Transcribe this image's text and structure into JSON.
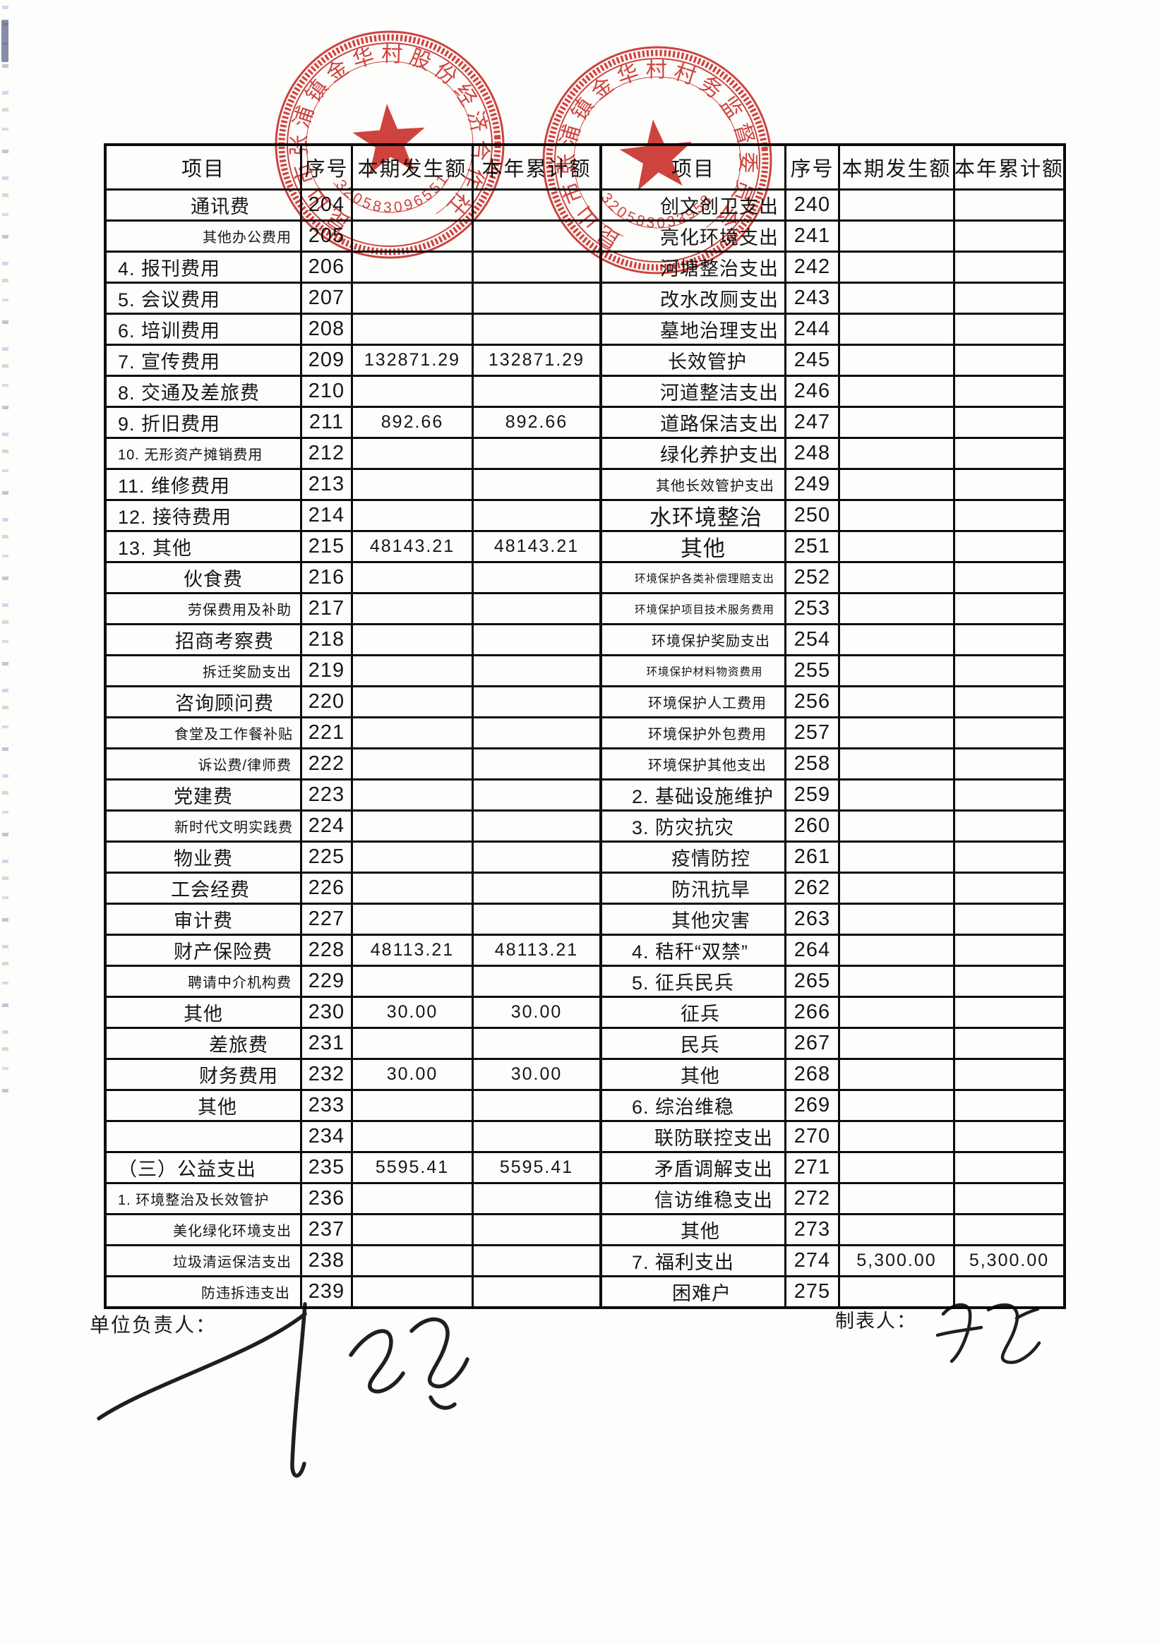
{
  "columns": {
    "item": "项目",
    "seq": "序号",
    "current": "本期发生额",
    "ytd": "本年累计额"
  },
  "footer": {
    "left_label": "单位负责人：",
    "right_label": "制表人："
  },
  "stamps": {
    "left": {
      "arc_text": "昆山市张浦镇金华村股份经济合作社",
      "code": "3205830965516"
    },
    "right": {
      "arc_text": "昆山市张浦镇金华村村务监督委员会",
      "code": "320583033958"
    }
  },
  "left_rows": [
    {
      "label": "通讯费",
      "seq": "204",
      "cur": "",
      "ytd": "",
      "al": "c",
      "sz": "n",
      "ind": 24
    },
    {
      "label": "其他办公费用",
      "seq": "205",
      "cur": "",
      "ytd": "",
      "al": "r",
      "sz": "s",
      "ind": 12
    },
    {
      "label": "4. 报刊费用",
      "seq": "206",
      "cur": "",
      "ytd": "",
      "al": "l",
      "sz": "n",
      "ind": 0
    },
    {
      "label": "5. 会议费用",
      "seq": "207",
      "cur": "",
      "ytd": "",
      "al": "l",
      "sz": "n",
      "ind": 0
    },
    {
      "label": "6. 培训费用",
      "seq": "208",
      "cur": "",
      "ytd": "",
      "al": "l",
      "sz": "n",
      "ind": 0
    },
    {
      "label": "7. 宣传费用",
      "seq": "209",
      "cur": "132871.29",
      "ytd": "132871.29",
      "al": "l",
      "sz": "n",
      "ind": 0
    },
    {
      "label": "8. 交通及差旅费",
      "seq": "210",
      "cur": "",
      "ytd": "",
      "al": "l",
      "sz": "n",
      "ind": 0
    },
    {
      "label": "9. 折旧费用",
      "seq": "211",
      "cur": "892.66",
      "ytd": "892.66",
      "al": "l",
      "sz": "n",
      "ind": 0
    },
    {
      "label": "10. 无形资产摊销费用",
      "seq": "212",
      "cur": "",
      "ytd": "",
      "al": "l",
      "sz": "s",
      "ind": 0
    },
    {
      "label": "11. 维修费用",
      "seq": "213",
      "cur": "",
      "ytd": "",
      "al": "l",
      "sz": "n",
      "ind": 0
    },
    {
      "label": "12. 接待费用",
      "seq": "214",
      "cur": "",
      "ytd": "",
      "al": "l",
      "sz": "n",
      "ind": 0
    },
    {
      "label": "13. 其他",
      "seq": "215",
      "cur": "48143.21",
      "ytd": "48143.21",
      "al": "l",
      "sz": "n",
      "ind": 0
    },
    {
      "label": "伙食费",
      "seq": "216",
      "cur": "",
      "ytd": "",
      "al": "c",
      "sz": "n",
      "ind": 14
    },
    {
      "label": "劳保费用及补助",
      "seq": "217",
      "cur": "",
      "ytd": "",
      "al": "r",
      "sz": "s",
      "ind": 12
    },
    {
      "label": "招商考察费",
      "seq": "218",
      "cur": "",
      "ytd": "",
      "al": "c",
      "sz": "n",
      "ind": 30
    },
    {
      "label": "拆迁奖励支出",
      "seq": "219",
      "cur": "",
      "ytd": "",
      "al": "r",
      "sz": "s",
      "ind": 12
    },
    {
      "label": "咨询顾问费",
      "seq": "220",
      "cur": "",
      "ytd": "",
      "al": "c",
      "sz": "n",
      "ind": 30
    },
    {
      "label": "食堂及工作餐补贴",
      "seq": "221",
      "cur": "",
      "ytd": "",
      "al": "r",
      "sz": "s",
      "ind": 10
    },
    {
      "label": "诉讼费/律师费",
      "seq": "222",
      "cur": "",
      "ytd": "",
      "al": "r",
      "sz": "s",
      "ind": 12
    },
    {
      "label": "党建费",
      "seq": "223",
      "cur": "",
      "ytd": "",
      "al": "c",
      "sz": "n",
      "ind": 0
    },
    {
      "label": "新时代文明实践费",
      "seq": "224",
      "cur": "",
      "ytd": "",
      "al": "r",
      "sz": "s",
      "ind": 10
    },
    {
      "label": "物业费",
      "seq": "225",
      "cur": "",
      "ytd": "",
      "al": "c",
      "sz": "n",
      "ind": 0
    },
    {
      "label": "工会经费",
      "seq": "226",
      "cur": "",
      "ytd": "",
      "al": "c",
      "sz": "n",
      "ind": 10
    },
    {
      "label": "审计费",
      "seq": "227",
      "cur": "",
      "ytd": "",
      "al": "c",
      "sz": "n",
      "ind": 0
    },
    {
      "label": "财产保险费",
      "seq": "228",
      "cur": "48113.21",
      "ytd": "48113.21",
      "al": "c",
      "sz": "n",
      "ind": 28
    },
    {
      "label": "聘请中介机构费",
      "seq": "229",
      "cur": "",
      "ytd": "",
      "al": "r",
      "sz": "s",
      "ind": 12
    },
    {
      "label": "其他",
      "seq": "230",
      "cur": "30.00",
      "ytd": "30.00",
      "al": "c",
      "sz": "n",
      "ind": 0
    },
    {
      "label": "差旅费",
      "seq": "231",
      "cur": "",
      "ytd": "",
      "al": "c",
      "sz": "n",
      "ind": 50
    },
    {
      "label": "财务费用",
      "seq": "232",
      "cur": "30.00",
      "ytd": "30.00",
      "al": "c",
      "sz": "n",
      "ind": 50
    },
    {
      "label": "其他",
      "seq": "233",
      "cur": "",
      "ytd": "",
      "al": "c",
      "sz": "n",
      "ind": 20
    },
    {
      "label": "",
      "seq": "234",
      "cur": "",
      "ytd": "",
      "al": "c",
      "sz": "n",
      "ind": 0
    },
    {
      "label": "（三）公益支出",
      "seq": "235",
      "cur": "5595.41",
      "ytd": "5595.41",
      "al": "l",
      "sz": "n",
      "ind": 0
    },
    {
      "label": "1. 环境整治及长效管护",
      "seq": "236",
      "cur": "",
      "ytd": "",
      "al": "l",
      "sz": "s",
      "ind": 0
    },
    {
      "label": "美化绿化环境支出",
      "seq": "237",
      "cur": "",
      "ytd": "",
      "al": "r",
      "sz": "s",
      "ind": 12
    },
    {
      "label": "垃圾清运保洁支出",
      "seq": "238",
      "cur": "",
      "ytd": "",
      "al": "r",
      "sz": "s",
      "ind": 12
    },
    {
      "label": "防违拆违支出",
      "seq": "239",
      "cur": "",
      "ytd": "",
      "al": "r",
      "sz": "s",
      "ind": 14
    }
  ],
  "right_rows": [
    {
      "label": "创文创卫支出",
      "seq": "240",
      "cur": "",
      "ytd": "",
      "al": "r",
      "sz": "n",
      "ind": 8
    },
    {
      "label": "亮化环境支出",
      "seq": "241",
      "cur": "",
      "ytd": "",
      "al": "r",
      "sz": "n",
      "ind": 8
    },
    {
      "label": "河塘整治支出",
      "seq": "242",
      "cur": "",
      "ytd": "",
      "al": "r",
      "sz": "n",
      "ind": 8
    },
    {
      "label": "改水改厕支出",
      "seq": "243",
      "cur": "",
      "ytd": "",
      "al": "r",
      "sz": "n",
      "ind": 8
    },
    {
      "label": "墓地治理支出",
      "seq": "244",
      "cur": "",
      "ytd": "",
      "al": "r",
      "sz": "n",
      "ind": 8
    },
    {
      "label": "长效管护",
      "seq": "245",
      "cur": "",
      "ytd": "",
      "al": "c",
      "sz": "n",
      "ind": 20
    },
    {
      "label": "河道整洁支出",
      "seq": "246",
      "cur": "",
      "ytd": "",
      "al": "r",
      "sz": "n",
      "ind": 8
    },
    {
      "label": "道路保洁支出",
      "seq": "247",
      "cur": "",
      "ytd": "",
      "al": "r",
      "sz": "n",
      "ind": 8
    },
    {
      "label": "绿化养护支出",
      "seq": "248",
      "cur": "",
      "ytd": "",
      "al": "r",
      "sz": "n",
      "ind": 8
    },
    {
      "label": "其他长效管护支出",
      "seq": "249",
      "cur": "",
      "ytd": "",
      "al": "r",
      "sz": "s",
      "ind": 14
    },
    {
      "label": "水环境整治",
      "seq": "250",
      "cur": "",
      "ytd": "",
      "al": "c",
      "sz": "b",
      "ind": 18
    },
    {
      "label": "其他",
      "seq": "251",
      "cur": "",
      "ytd": "",
      "al": "c",
      "sz": "b",
      "ind": 14
    },
    {
      "label": "环境保护各类补偿理赔支出",
      "seq": "252",
      "cur": "",
      "ytd": "",
      "al": "c",
      "sz": "xs",
      "ind": 16
    },
    {
      "label": "环境保护项目技术服务费用",
      "seq": "253",
      "cur": "",
      "ytd": "",
      "al": "c",
      "sz": "xs",
      "ind": 16
    },
    {
      "label": "环境保护奖励支出",
      "seq": "254",
      "cur": "",
      "ytd": "",
      "al": "c",
      "sz": "s",
      "ind": 25
    },
    {
      "label": "环境保护材料物资费用",
      "seq": "255",
      "cur": "",
      "ytd": "",
      "al": "c",
      "sz": "xs",
      "ind": 16
    },
    {
      "label": "环境保护人工费用",
      "seq": "256",
      "cur": "",
      "ytd": "",
      "al": "c",
      "sz": "s",
      "ind": 20
    },
    {
      "label": "环境保护外包费用",
      "seq": "257",
      "cur": "",
      "ytd": "",
      "al": "c",
      "sz": "s",
      "ind": 20
    },
    {
      "label": "环境保护其他支出",
      "seq": "258",
      "cur": "",
      "ytd": "",
      "al": "c",
      "sz": "s",
      "ind": 20
    },
    {
      "label": "2. 基础设施维护",
      "seq": "259",
      "cur": "",
      "ytd": "",
      "al": "l",
      "sz": "n",
      "ind": 0
    },
    {
      "label": "3. 防灾抗灾",
      "seq": "260",
      "cur": "",
      "ytd": "",
      "al": "l",
      "sz": "n",
      "ind": 0
    },
    {
      "label": "疫情防控",
      "seq": "261",
      "cur": "",
      "ytd": "",
      "al": "c",
      "sz": "n",
      "ind": 25
    },
    {
      "label": "防汛抗旱",
      "seq": "262",
      "cur": "",
      "ytd": "",
      "al": "c",
      "sz": "n",
      "ind": 25
    },
    {
      "label": "其他灾害",
      "seq": "263",
      "cur": "",
      "ytd": "",
      "al": "c",
      "sz": "n",
      "ind": 25
    },
    {
      "label": "4. 秸秆“双禁”",
      "seq": "264",
      "cur": "",
      "ytd": "",
      "al": "l",
      "sz": "n",
      "ind": 0
    },
    {
      "label": "5. 征兵民兵",
      "seq": "265",
      "cur": "",
      "ytd": "",
      "al": "l",
      "sz": "n",
      "ind": 0
    },
    {
      "label": "征兵",
      "seq": "266",
      "cur": "",
      "ytd": "",
      "al": "c",
      "sz": "n",
      "ind": 10
    },
    {
      "label": "民兵",
      "seq": "267",
      "cur": "",
      "ytd": "",
      "al": "c",
      "sz": "n",
      "ind": 10
    },
    {
      "label": "其他",
      "seq": "268",
      "cur": "",
      "ytd": "",
      "al": "c",
      "sz": "n",
      "ind": 10
    },
    {
      "label": "6. 综治维稳",
      "seq": "269",
      "cur": "",
      "ytd": "",
      "al": "l",
      "sz": "n",
      "ind": 0
    },
    {
      "label": "联防联控支出",
      "seq": "270",
      "cur": "",
      "ytd": "",
      "al": "r",
      "sz": "n",
      "ind": 16
    },
    {
      "label": "矛盾调解支出",
      "seq": "271",
      "cur": "",
      "ytd": "",
      "al": "r",
      "sz": "n",
      "ind": 16
    },
    {
      "label": "信访维稳支出",
      "seq": "272",
      "cur": "",
      "ytd": "",
      "al": "r",
      "sz": "n",
      "ind": 16
    },
    {
      "label": "其他",
      "seq": "273",
      "cur": "",
      "ytd": "",
      "al": "c",
      "sz": "n",
      "ind": 10
    },
    {
      "label": "7. 福利支出",
      "seq": "274",
      "cur": "5,300.00",
      "ytd": "5,300.00",
      "al": "l",
      "sz": "n",
      "ind": 0
    },
    {
      "label": "困难户",
      "seq": "275",
      "cur": "",
      "ytd": "",
      "al": "c",
      "sz": "n",
      "ind": 12
    }
  ]
}
